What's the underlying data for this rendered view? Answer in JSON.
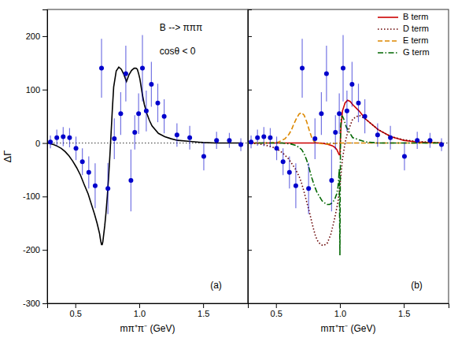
{
  "chart_data": [
    {
      "type": "line",
      "xlabel": "mπ⁺π⁻ (GeV)",
      "ylabel": "ΔΓ",
      "xlim": [
        0.28,
        1.85
      ],
      "ylim": [
        -300,
        250
      ],
      "xticks": [
        0.5,
        {
          "value": 1,
          "label": "1.0"
        },
        1.5
      ],
      "yticks": [
        -300,
        -200,
        -100,
        0,
        100,
        200
      ],
      "grid": false,
      "hlines": [
        0
      ],
      "annotations": [
        "B --> πππ",
        "cosθ < 0",
        "(a)"
      ],
      "series": [
        {
          "type": "scatter",
          "marker": "circle",
          "color": "#0000CC",
          "x": [
            0.305,
            0.355,
            0.405,
            0.455,
            0.505,
            0.555,
            0.605,
            0.655,
            0.705,
            0.755,
            0.805,
            0.855,
            0.895,
            0.935,
            0.965,
            0.995,
            1.025,
            1.055,
            1.095,
            1.145,
            1.195,
            1.295,
            1.395,
            1.505,
            1.605,
            1.705,
            1.795
          ],
          "values": [
            2,
            10,
            12,
            10,
            -10,
            -35,
            -55,
            -80,
            140,
            -85,
            8,
            55,
            130,
            -70,
            20,
            55,
            140,
            60,
            110,
            75,
            50,
            15,
            10,
            -25,
            5,
            5,
            -3
          ],
          "error": [
            12,
            15,
            18,
            18,
            22,
            25,
            30,
            42,
            55,
            48,
            38,
            40,
            52,
            58,
            32,
            38,
            62,
            38,
            42,
            36,
            32,
            22,
            22,
            26,
            16,
            14,
            12
          ]
        },
        {
          "type": "line",
          "line_style": "solid",
          "color": "#000000",
          "x": [
            0.28,
            0.3,
            0.33,
            0.36,
            0.39,
            0.42,
            0.45,
            0.48,
            0.51,
            0.54,
            0.57,
            0.6,
            0.63,
            0.65,
            0.67,
            0.68,
            0.69,
            0.695,
            0.7,
            0.705,
            0.71,
            0.715,
            0.72,
            0.73,
            0.74,
            0.75,
            0.76,
            0.77,
            0.78,
            0.79,
            0.8,
            0.82,
            0.84,
            0.86,
            0.88,
            0.9,
            0.92,
            0.94,
            0.96,
            0.975,
            0.985,
            0.995,
            1.005,
            1.015,
            1.025,
            1.04,
            1.06,
            1.08,
            1.1,
            1.15,
            1.2,
            1.25,
            1.3,
            1.4,
            1.5,
            1.6,
            1.7,
            1.8
          ],
          "values": [
            0,
            -1,
            -3,
            -6,
            -10,
            -16,
            -24,
            -34,
            -46,
            -60,
            -78,
            -95,
            -118,
            -133,
            -150,
            -160,
            -170,
            -178,
            -185,
            -190,
            -190,
            -185,
            -175,
            -155,
            -130,
            -100,
            -65,
            -25,
            20,
            65,
            105,
            135,
            142,
            138,
            128,
            115,
            128,
            136,
            140,
            140,
            138,
            130,
            120,
            105,
            90,
            72,
            55,
            42,
            32,
            18,
            12,
            8,
            5,
            3,
            1,
            0,
            0,
            0
          ]
        }
      ]
    },
    {
      "type": "line",
      "xlabel": "mπ⁺π⁻ (GeV)",
      "xlim": [
        0.28,
        1.85
      ],
      "ylim": [
        -300,
        250
      ],
      "xticks": [
        0.5,
        {
          "value": 1,
          "label": "1.0"
        },
        1.5
      ],
      "yticks": [
        -300,
        -200,
        -100,
        0,
        100,
        200
      ],
      "tick_labels": "x",
      "grid": false,
      "legend": "upper right",
      "hlines": [
        0
      ],
      "annotations": [
        "(b)"
      ],
      "series": [
        {
          "type": "scatter",
          "marker": "circle",
          "color": "#0000CC",
          "x": [
            0.305,
            0.355,
            0.405,
            0.455,
            0.505,
            0.555,
            0.605,
            0.655,
            0.705,
            0.755,
            0.805,
            0.855,
            0.895,
            0.935,
            0.965,
            0.995,
            1.025,
            1.055,
            1.095,
            1.145,
            1.195,
            1.295,
            1.395,
            1.505,
            1.605,
            1.705,
            1.795
          ],
          "values": [
            2,
            10,
            12,
            10,
            -10,
            -35,
            -55,
            -80,
            140,
            -85,
            8,
            55,
            130,
            -70,
            20,
            55,
            140,
            60,
            110,
            75,
            50,
            15,
            10,
            -25,
            5,
            5,
            -3
          ],
          "error": [
            12,
            15,
            18,
            18,
            22,
            25,
            30,
            42,
            55,
            48,
            38,
            40,
            52,
            58,
            32,
            38,
            62,
            38,
            42,
            36,
            32,
            22,
            22,
            26,
            16,
            14,
            12
          ]
        },
        {
          "name": "B term",
          "type": "line",
          "line_style": "solid",
          "color": "#CC0000",
          "x": [
            0.28,
            0.6,
            0.7,
            0.8,
            0.85,
            0.9,
            0.94,
            0.96,
            0.975,
            0.985,
            0.99,
            0.995,
            1.0,
            1.005,
            1.01,
            1.02,
            1.04,
            1.06,
            1.08,
            1.1,
            1.15,
            1.2,
            1.3,
            1.4,
            1.5,
            1.6,
            1.8
          ],
          "values": [
            0,
            0,
            0,
            0,
            0,
            -2,
            -5,
            -8,
            -12,
            -17,
            -20,
            -22,
            -22,
            15,
            35,
            60,
            75,
            80,
            78,
            72,
            60,
            45,
            25,
            12,
            5,
            2,
            0
          ]
        },
        {
          "name": "D term",
          "type": "line",
          "line_style": "dotted",
          "color": "#660000",
          "x": [
            0.28,
            0.35,
            0.4,
            0.45,
            0.5,
            0.55,
            0.6,
            0.65,
            0.68,
            0.7,
            0.72,
            0.74,
            0.76,
            0.78,
            0.795,
            0.81,
            0.83,
            0.85,
            0.87,
            0.9,
            0.93,
            0.96,
            0.985,
            1.0,
            1.01,
            1.02,
            1.04,
            1.06,
            1.1,
            1.15,
            1.2,
            1.3,
            1.4,
            1.5,
            1.6,
            1.8
          ],
          "values": [
            0,
            -1,
            -3,
            -6,
            -10,
            -18,
            -30,
            -48,
            -62,
            -75,
            -92,
            -110,
            -128,
            -148,
            -162,
            -175,
            -185,
            -190,
            -192,
            -188,
            -170,
            -140,
            -110,
            -80,
            -55,
            -30,
            0,
            20,
            45,
            52,
            45,
            25,
            12,
            6,
            3,
            0
          ]
        },
        {
          "name": "E term",
          "type": "line",
          "line_style": "dashed",
          "color": "#DD8800",
          "x": [
            0.28,
            0.45,
            0.52,
            0.57,
            0.6,
            0.62,
            0.64,
            0.66,
            0.68,
            0.7,
            0.72,
            0.74,
            0.76,
            0.78,
            0.8,
            0.85,
            0.9,
            0.95,
            1.0,
            1.05,
            1.1,
            1.2,
            1.3,
            1.5,
            1.8
          ],
          "values": [
            0,
            0,
            2,
            8,
            16,
            24,
            36,
            46,
            54,
            57,
            52,
            40,
            24,
            10,
            2,
            -1,
            -2,
            -1,
            0,
            0,
            0,
            0,
            0,
            0,
            0
          ]
        },
        {
          "name": "G term",
          "type": "line",
          "line_style": "dashdot",
          "color": "#006600",
          "x": [
            0.28,
            0.55,
            0.62,
            0.66,
            0.7,
            0.72,
            0.74,
            0.76,
            0.78,
            0.8,
            0.82,
            0.84,
            0.86,
            0.88,
            0.9,
            0.92,
            0.94,
            0.96,
            0.975,
            0.985,
            0.99,
            0.995,
            1.0,
            1.005,
            1.01,
            1.015,
            1.02,
            1.03,
            1.05,
            1.1,
            1.2,
            1.3,
            1.5,
            1.8
          ],
          "values": [
            0,
            0,
            -2,
            -5,
            -12,
            -20,
            -32,
            -48,
            -65,
            -80,
            -92,
            -100,
            -108,
            -112,
            -115,
            -115,
            -112,
            -105,
            -95,
            -82,
            -68,
            -48,
            -210,
            25,
            45,
            50,
            50,
            45,
            30,
            10,
            2,
            0,
            0,
            0
          ]
        }
      ]
    }
  ]
}
